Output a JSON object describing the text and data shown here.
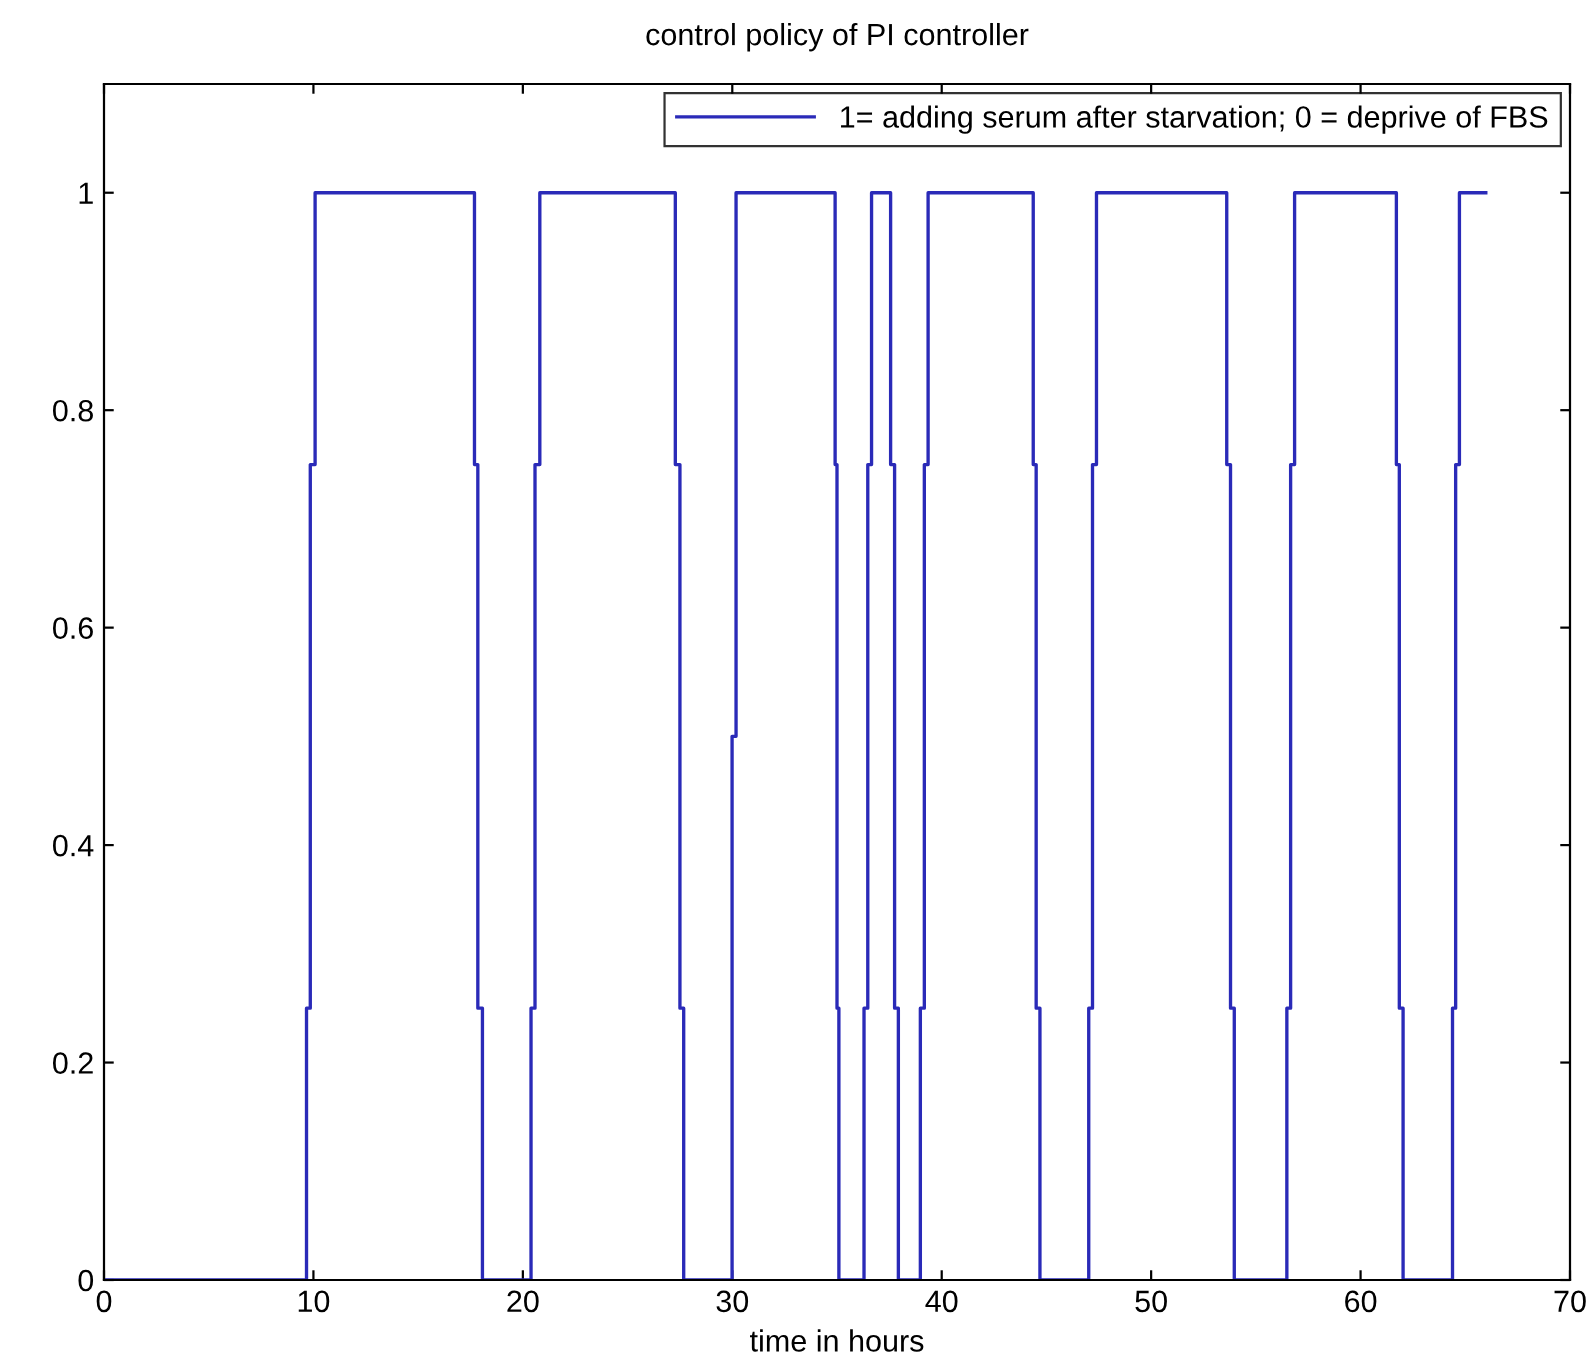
{
  "chart_data": {
    "type": "line",
    "title": "control policy of PI controller",
    "xlabel": "time in hours",
    "series": [
      {
        "name": "1= adding serum after starvation; 0 = deprive of FBS",
        "color": "#2a2ab8",
        "x": [
          0,
          9.67,
          9.67,
          9.85,
          9.85,
          10.08,
          10.08,
          17.69,
          17.69,
          17.85,
          17.85,
          18.07,
          18.07,
          20.39,
          20.39,
          20.58,
          20.58,
          20.81,
          20.81,
          27.28,
          27.28,
          27.5,
          27.5,
          27.68,
          27.68,
          29.99,
          29.99,
          30.18,
          30.18,
          34.91,
          34.91,
          35.0,
          35.0,
          35.09,
          35.09,
          36.29,
          36.29,
          36.47,
          36.47,
          36.65,
          36.65,
          37.56,
          37.56,
          37.75,
          37.75,
          37.93,
          37.93,
          38.98,
          38.98,
          39.17,
          39.17,
          39.35,
          39.35,
          44.37,
          44.37,
          44.51,
          44.51,
          44.69,
          44.69,
          47.02,
          47.02,
          47.2,
          47.2,
          47.39,
          47.39,
          53.61,
          53.61,
          53.79,
          53.79,
          53.97,
          53.97,
          56.48,
          56.48,
          56.66,
          56.66,
          56.85,
          56.85,
          61.71,
          61.71,
          61.85,
          61.85,
          62.03,
          62.03,
          64.39,
          64.39,
          64.54,
          64.54,
          64.72,
          64.72,
          65.98
        ],
        "values": [
          0,
          0,
          0.25,
          0.25,
          0.75,
          0.75,
          1,
          1,
          0.75,
          0.75,
          0.25,
          0.25,
          0,
          0,
          0.25,
          0.25,
          0.75,
          0.75,
          1,
          1,
          0.75,
          0.75,
          0.25,
          0.25,
          0,
          0,
          0.5,
          0.5,
          1,
          1,
          0.75,
          0.75,
          0.25,
          0.25,
          0,
          0,
          0.25,
          0.25,
          0.75,
          0.75,
          1,
          1,
          0.75,
          0.75,
          0.25,
          0.25,
          0,
          0,
          0.25,
          0.25,
          0.75,
          0.75,
          1,
          1,
          0.75,
          0.75,
          0.25,
          0.25,
          0,
          0,
          0.25,
          0.25,
          0.75,
          0.75,
          1,
          1,
          0.75,
          0.75,
          0.25,
          0.25,
          0,
          0,
          0.25,
          0.25,
          0.75,
          0.75,
          1,
          1,
          0.75,
          0.75,
          0.25,
          0.25,
          0,
          0,
          0.25,
          0.25,
          0.75,
          0.75,
          1,
          1
        ]
      }
    ],
    "xlim": [
      0,
      70
    ],
    "xticks": [
      0,
      10,
      20,
      30,
      40,
      50,
      60,
      70
    ],
    "ylim": [
      0,
      1.1
    ],
    "yticks": [
      0,
      0.2,
      0.4,
      0.6,
      0.8,
      1
    ],
    "grid": false,
    "legend": "top right",
    "marker": "none",
    "line_style": "solid"
  }
}
